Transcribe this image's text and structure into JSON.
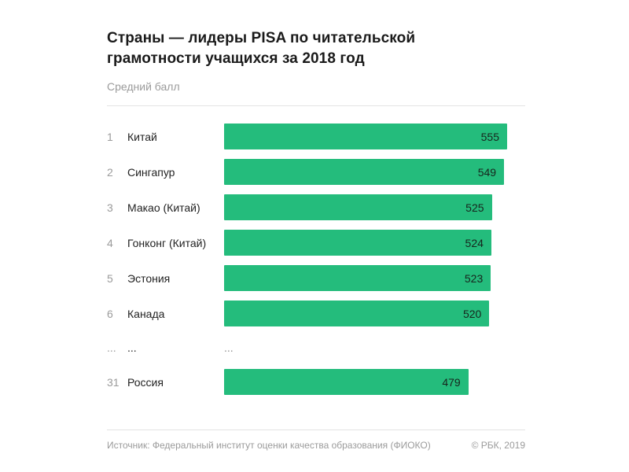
{
  "header": {
    "title": "Страны — лидеры PISA по читательской грамотности учащихся за 2018 год",
    "subtitle": "Средний балл"
  },
  "footer": {
    "source": "Источник: Федеральный институт оценки качества образования (ФИОКО)",
    "copyright": "© РБК, 2019"
  },
  "colors": {
    "bar": "#24bc7c",
    "title_text": "#1a1a1a",
    "muted_text": "#9b9b9b",
    "value_text": "#17251d"
  },
  "chart_data": {
    "type": "bar",
    "orientation": "horizontal",
    "title": "Страны — лидеры PISA по читательской грамотности учащихся за 2018 год",
    "value_label": "Средний балл",
    "xlim": [
      0,
      555
    ],
    "max_value": 555,
    "grid": false,
    "legend": "none",
    "rows": [
      {
        "rank": "1",
        "country": "Китай",
        "value": 555
      },
      {
        "rank": "2",
        "country": "Сингапур",
        "value": 549
      },
      {
        "rank": "3",
        "country": "Макао (Китай)",
        "value": 525
      },
      {
        "rank": "4",
        "country": "Гонконг (Китай)",
        "value": 524
      },
      {
        "rank": "5",
        "country": "Эстония",
        "value": 523
      },
      {
        "rank": "6",
        "country": "Канада",
        "value": 520
      },
      {
        "rank": "...",
        "country": "...",
        "value": null,
        "ellipsis": true
      },
      {
        "rank": "31",
        "country": "Россия",
        "value": 479
      }
    ]
  }
}
